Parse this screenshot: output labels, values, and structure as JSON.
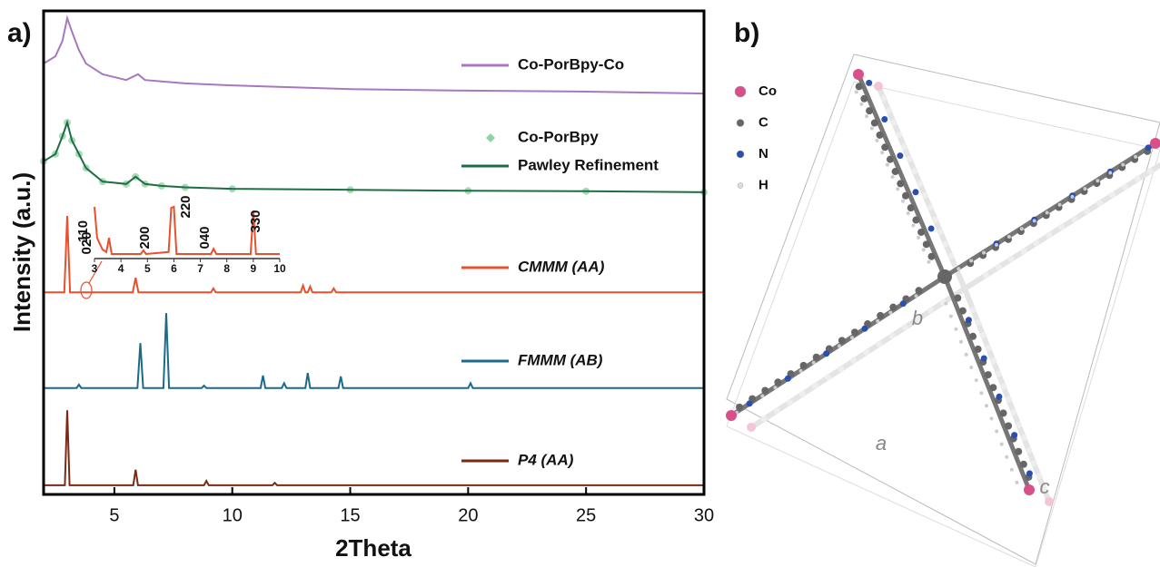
{
  "chart_data": {
    "type": "line",
    "panel_label": "a)",
    "xlabel": "2Theta",
    "ylabel": "Intensity (a.u.)",
    "xlim": [
      2,
      30
    ],
    "xticks": [
      5,
      10,
      15,
      20,
      25,
      30
    ],
    "ylim": [
      0,
      100
    ],
    "series": [
      {
        "name": "Co-PorBpy-Co",
        "color": "#a678c0",
        "style": "line",
        "x": [
          2,
          2.5,
          2.8,
          3.0,
          3.2,
          3.5,
          3.8,
          4.5,
          5.5,
          6.0,
          6.3,
          7,
          8,
          10,
          15,
          20,
          25,
          30
        ],
        "values": [
          89.1,
          90.6,
          93.8,
          98.5,
          95.7,
          91.9,
          89.1,
          86.9,
          85.7,
          86.9,
          85.7,
          85.4,
          85.0,
          84.6,
          83.8,
          83.5,
          83.3,
          82.9
        ]
      },
      {
        "name": "Co-PorBpy",
        "color": "#8fd4a8",
        "style": "markers",
        "x": [
          2,
          2.5,
          2.8,
          3.0,
          3.2,
          3.5,
          3.8,
          4.5,
          5.5,
          5.9,
          6.3,
          7,
          8,
          10,
          15,
          20,
          25,
          30
        ],
        "values": [
          68.9,
          70.4,
          74.1,
          76.9,
          73.2,
          70.4,
          67.5,
          64.7,
          64.2,
          65.7,
          64.2,
          63.8,
          63.5,
          63.2,
          63.0,
          62.8,
          62.7,
          62.5
        ]
      },
      {
        "name": "Pawley Refinement",
        "color": "#1f6e43",
        "style": "line",
        "x": [
          2,
          2.5,
          2.8,
          3.0,
          3.2,
          3.5,
          3.8,
          4.5,
          5.5,
          5.9,
          6.3,
          7,
          8,
          10,
          15,
          20,
          25,
          30
        ],
        "values": [
          68.9,
          70.4,
          74.1,
          76.9,
          73.2,
          70.4,
          67.5,
          64.7,
          64.2,
          65.7,
          64.2,
          63.8,
          63.5,
          63.2,
          63.0,
          62.8,
          62.7,
          62.5
        ]
      },
      {
        "name": "CMMM (AA)",
        "color": "#e8502e",
        "style": "line",
        "x": [
          2,
          2.88,
          3.0,
          3.12,
          5.78,
          5.9,
          6.02,
          9.1,
          9.2,
          9.3,
          12.9,
          13.0,
          13.1,
          13.2,
          13.3,
          13.4,
          14.2,
          14.3,
          14.4,
          30
        ],
        "values": [
          41.8,
          41.8,
          57.6,
          41.8,
          41.8,
          44.8,
          41.8,
          41.8,
          42.6,
          41.8,
          41.8,
          43.2,
          41.8,
          41.8,
          43.0,
          41.8,
          41.8,
          42.6,
          41.8,
          41.8
        ]
      },
      {
        "name": "FMMM (AB)",
        "color": "#1c6a8a",
        "style": "line",
        "x": [
          2,
          3.4,
          3.5,
          3.6,
          5.98,
          6.1,
          6.22,
          7.08,
          7.2,
          7.32,
          8.7,
          8.8,
          8.9,
          11.2,
          11.3,
          11.4,
          12.1,
          12.2,
          12.3,
          13.1,
          13.2,
          13.3,
          14.5,
          14.6,
          14.7,
          20.0,
          20.1,
          20.2,
          30
        ],
        "values": [
          22.0,
          22.0,
          22.7,
          22.0,
          22.0,
          31.3,
          22.0,
          22.0,
          37.5,
          22.0,
          22.0,
          22.5,
          22.0,
          22.0,
          24.6,
          22.0,
          22.0,
          23.0,
          22.0,
          22.0,
          25.1,
          22.0,
          22.0,
          24.4,
          22.0,
          22.0,
          23.0,
          22.0,
          22.0
        ]
      },
      {
        "name": "P4 (AA)",
        "color": "#7a2a14",
        "style": "line",
        "x": [
          2,
          2.9,
          3.0,
          3.1,
          5.8,
          5.9,
          6.0,
          8.8,
          8.9,
          9.0,
          11.7,
          11.8,
          11.9,
          30
        ],
        "values": [
          1.9,
          1.9,
          17.4,
          1.9,
          1.9,
          5.1,
          1.9,
          1.9,
          2.8,
          1.9,
          1.9,
          2.4,
          1.9,
          1.9
        ]
      }
    ],
    "inset": {
      "color": "#e8502e",
      "xlim": [
        3,
        10
      ],
      "xticks": [
        3,
        4,
        5,
        6,
        7,
        8,
        9,
        10
      ],
      "ylim": [
        0,
        100
      ],
      "x": [
        3.0,
        3.1,
        3.3,
        3.45,
        3.55,
        3.65,
        4.75,
        4.85,
        4.95,
        5.8,
        5.9,
        6.0,
        6.1,
        7.4,
        7.5,
        7.6,
        8.9,
        9.0,
        9.1,
        10
      ],
      "values": [
        95,
        38,
        17,
        12,
        38,
        8.3,
        8.3,
        15,
        8.3,
        12,
        93,
        95,
        8.3,
        8.3,
        18,
        8.3,
        8.3,
        88,
        8.3,
        8.3
      ],
      "annotations": [
        "110",
        "020",
        "200",
        "220",
        "040",
        "330"
      ]
    }
  },
  "panel_b": {
    "label": "b)",
    "legend": [
      {
        "name": "Co",
        "color": "#d94f8a"
      },
      {
        "name": "C",
        "color": "#666666"
      },
      {
        "name": "N",
        "color": "#2a4fb0"
      },
      {
        "name": "H",
        "color": "#dddddd"
      }
    ],
    "axes": [
      "a",
      "b",
      "c"
    ]
  }
}
